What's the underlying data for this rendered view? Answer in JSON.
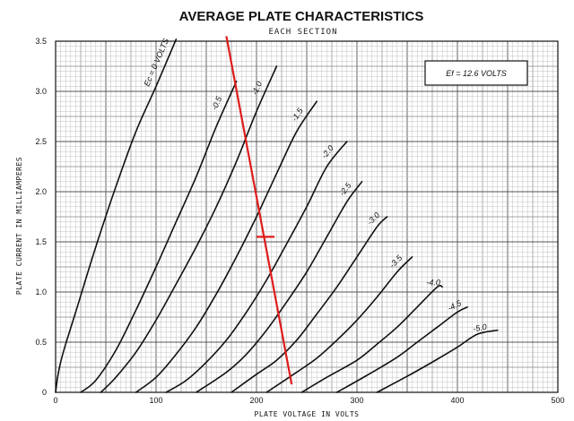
{
  "chart_data": {
    "type": "line",
    "title": "AVERAGE PLATE CHARACTERISTICS",
    "subtitle": "EACH SECTION",
    "xlabel": "PLATE VOLTAGE IN VOLTS",
    "ylabel": "PLATE CURRENT IN MILLIAMPERES",
    "xlim": [
      0,
      500
    ],
    "ylim": [
      0,
      3.5
    ],
    "x_ticks": [
      "0",
      "100",
      "200",
      "300",
      "400",
      "500"
    ],
    "y_ticks": [
      "0",
      "0.5",
      "1.0",
      "1.5",
      "2.0",
      "2.5",
      "3.0",
      "3.5"
    ],
    "grid": true,
    "annotation": "Ef = 12.6 VOLTS",
    "curve_label_prefix": "Ec = ",
    "series": [
      {
        "name": "0",
        "label": "0 VOLTS",
        "points": [
          [
            0,
            0
          ],
          [
            2,
            0.15
          ],
          [
            5,
            0.3
          ],
          [
            10,
            0.48
          ],
          [
            20,
            0.8
          ],
          [
            40,
            1.45
          ],
          [
            60,
            2.05
          ],
          [
            80,
            2.6
          ],
          [
            100,
            3.05
          ],
          [
            120,
            3.52
          ]
        ]
      },
      {
        "name": "-0.5",
        "label": "-0.5",
        "points": [
          [
            25,
            0
          ],
          [
            40,
            0.12
          ],
          [
            60,
            0.42
          ],
          [
            80,
            0.82
          ],
          [
            100,
            1.25
          ],
          [
            120,
            1.7
          ],
          [
            140,
            2.15
          ],
          [
            160,
            2.65
          ],
          [
            180,
            3.1
          ]
        ]
      },
      {
        "name": "-1.0",
        "label": "-1.0",
        "points": [
          [
            45,
            0
          ],
          [
            60,
            0.15
          ],
          [
            80,
            0.4
          ],
          [
            100,
            0.72
          ],
          [
            120,
            1.08
          ],
          [
            140,
            1.45
          ],
          [
            160,
            1.85
          ],
          [
            180,
            2.3
          ],
          [
            200,
            2.8
          ],
          [
            220,
            3.25
          ]
        ]
      },
      {
        "name": "-1.5",
        "label": "-1.5",
        "points": [
          [
            80,
            0
          ],
          [
            100,
            0.15
          ],
          [
            120,
            0.38
          ],
          [
            140,
            0.65
          ],
          [
            160,
            0.98
          ],
          [
            180,
            1.35
          ],
          [
            200,
            1.75
          ],
          [
            220,
            2.18
          ],
          [
            240,
            2.6
          ],
          [
            260,
            2.9
          ]
        ]
      },
      {
        "name": "-2.0",
        "label": "-2.0",
        "points": [
          [
            110,
            0
          ],
          [
            130,
            0.12
          ],
          [
            150,
            0.3
          ],
          [
            170,
            0.52
          ],
          [
            190,
            0.8
          ],
          [
            210,
            1.12
          ],
          [
            230,
            1.48
          ],
          [
            250,
            1.85
          ],
          [
            270,
            2.25
          ],
          [
            290,
            2.5
          ]
        ]
      },
      {
        "name": "-2.5",
        "label": "-2.5",
        "points": [
          [
            140,
            0
          ],
          [
            170,
            0.2
          ],
          [
            190,
            0.38
          ],
          [
            210,
            0.62
          ],
          [
            230,
            0.9
          ],
          [
            250,
            1.2
          ],
          [
            270,
            1.55
          ],
          [
            290,
            1.9
          ],
          [
            305,
            2.1
          ]
        ]
      },
      {
        "name": "-3.0",
        "label": "-3.0",
        "points": [
          [
            175,
            0
          ],
          [
            200,
            0.18
          ],
          [
            220,
            0.32
          ],
          [
            240,
            0.52
          ],
          [
            260,
            0.78
          ],
          [
            280,
            1.05
          ],
          [
            300,
            1.35
          ],
          [
            320,
            1.65
          ],
          [
            330,
            1.75
          ]
        ]
      },
      {
        "name": "-3.5",
        "label": "-3.5",
        "points": [
          [
            210,
            0
          ],
          [
            240,
            0.2
          ],
          [
            260,
            0.34
          ],
          [
            280,
            0.52
          ],
          [
            300,
            0.72
          ],
          [
            320,
            0.95
          ],
          [
            340,
            1.2
          ],
          [
            355,
            1.35
          ]
        ]
      },
      {
        "name": "-4.0",
        "label": "-4.0",
        "points": [
          [
            245,
            0
          ],
          [
            270,
            0.15
          ],
          [
            300,
            0.32
          ],
          [
            320,
            0.48
          ],
          [
            340,
            0.65
          ],
          [
            360,
            0.85
          ],
          [
            380,
            1.05
          ],
          [
            385,
            1.05
          ]
        ]
      },
      {
        "name": "-4.5",
        "label": "-4.5",
        "points": [
          [
            280,
            0
          ],
          [
            310,
            0.17
          ],
          [
            340,
            0.35
          ],
          [
            360,
            0.5
          ],
          [
            380,
            0.65
          ],
          [
            400,
            0.8
          ],
          [
            410,
            0.85
          ]
        ]
      },
      {
        "name": "-5.0",
        "label": "-5.0",
        "points": [
          [
            320,
            0
          ],
          [
            350,
            0.16
          ],
          [
            380,
            0.33
          ],
          [
            400,
            0.45
          ],
          [
            420,
            0.58
          ],
          [
            440,
            0.62
          ]
        ]
      }
    ],
    "load_line": {
      "color": "#e01b1b",
      "points": [
        [
          170,
          3.55
        ],
        [
          235,
          0.08
        ]
      ],
      "marker": [
        209,
        1.55
      ]
    }
  }
}
